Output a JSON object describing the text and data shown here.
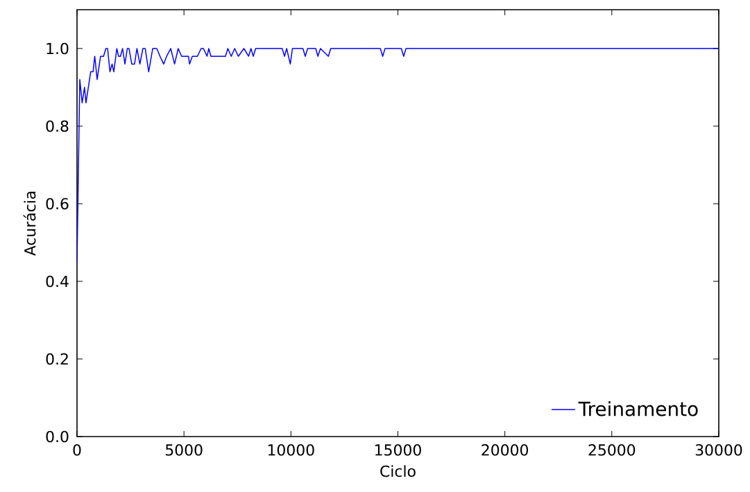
{
  "chart_data": {
    "type": "line",
    "xlabel": "Ciclo",
    "ylabel": "Acurácia",
    "xlim": [
      0,
      30000
    ],
    "ylim": [
      0,
      1.1
    ],
    "xticks": [
      0,
      5000,
      10000,
      15000,
      20000,
      25000,
      30000
    ],
    "yticks": [
      {
        "value": 0,
        "label": "0.0"
      },
      {
        "value": 0.2,
        "label": "0.2"
      },
      {
        "value": 0.4,
        "label": "0.4"
      },
      {
        "value": 0.6,
        "label": "0.6"
      },
      {
        "value": 0.8,
        "label": "0.8"
      },
      {
        "value": 1.0,
        "label": "1.0"
      }
    ],
    "legend": "bottom right",
    "series": [
      {
        "name": "Treinamento",
        "color": "#0000ff",
        "x": [
          0,
          130,
          240,
          350,
          420,
          640,
          750,
          830,
          940,
          1100,
          1240,
          1350,
          1430,
          1540,
          1640,
          1720,
          1860,
          1940,
          2030,
          2130,
          2240,
          2350,
          2430,
          2560,
          2690,
          2800,
          2940,
          3080,
          3190,
          3350,
          3540,
          3730,
          3880,
          4050,
          4190,
          4380,
          4560,
          4730,
          4890,
          5210,
          5260,
          5390,
          5630,
          5800,
          5910,
          6080,
          6160,
          6260,
          6720,
          6940,
          7050,
          7210,
          7370,
          7540,
          7800,
          8020,
          8130,
          8240,
          8350,
          9590,
          9700,
          9800,
          9970,
          10070,
          10560,
          10670,
          10780,
          11160,
          11260,
          11380,
          11750,
          11860,
          14180,
          14290,
          14400,
          15160,
          15270,
          15380,
          30000
        ],
        "values": [
          0.45,
          0.92,
          0.86,
          0.9,
          0.86,
          0.94,
          0.94,
          0.98,
          0.92,
          0.98,
          0.98,
          1.0,
          1.0,
          0.94,
          0.96,
          0.94,
          1.0,
          0.98,
          0.98,
          1.0,
          0.96,
          1.0,
          1.0,
          0.96,
          0.96,
          1.0,
          0.96,
          1.0,
          1.0,
          0.94,
          1.0,
          1.0,
          0.98,
          0.96,
          0.98,
          1.0,
          0.96,
          1.0,
          0.98,
          0.98,
          0.96,
          0.98,
          0.98,
          1.0,
          1.0,
          0.98,
          1.0,
          0.98,
          0.98,
          0.98,
          1.0,
          0.98,
          1.0,
          0.98,
          1.0,
          0.98,
          1.0,
          0.98,
          1.0,
          1.0,
          0.98,
          1.0,
          0.96,
          1.0,
          1.0,
          0.98,
          1.0,
          1.0,
          0.98,
          1.0,
          0.98,
          1.0,
          1.0,
          0.98,
          1.0,
          1.0,
          0.98,
          1.0,
          1.0
        ]
      }
    ]
  }
}
